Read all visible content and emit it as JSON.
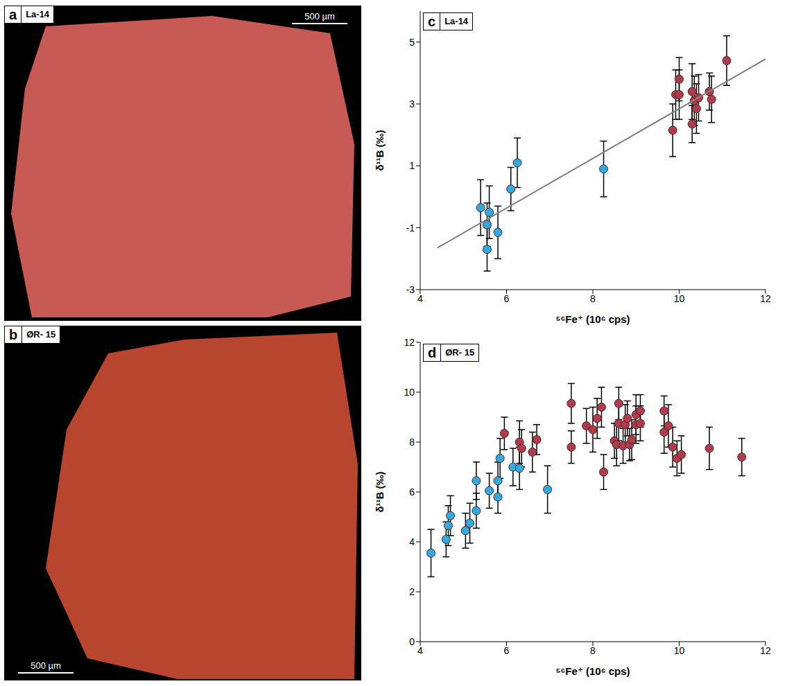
{
  "images": [
    {
      "panel": "a",
      "sample": "La-14",
      "scale_bar": "500 µm"
    },
    {
      "panel": "b",
      "sample": "ØR- 15",
      "scale_bar": "500 µm"
    }
  ],
  "chart_data": [
    {
      "type": "scatter",
      "panel": "c",
      "title": "La-14",
      "x_label": "⁵⁶Fe⁺ (10⁶ cps)",
      "y_label": "δ¹¹B (‰)",
      "xlim": [
        4,
        12
      ],
      "xticks": [
        4,
        6,
        8,
        10,
        12
      ],
      "ylim": [
        -3,
        6
      ],
      "yticks": [
        -3,
        -1,
        1,
        3,
        5
      ],
      "series": [
        {
          "type": "scatter",
          "marker": "circle",
          "color": "#35a9df",
          "x": [
            5.4,
            5.55,
            5.55,
            5.6,
            5.8,
            6.1,
            6.25,
            8.25
          ],
          "y": [
            -0.35,
            -1.7,
            -0.9,
            -0.5,
            -1.15,
            0.25,
            1.1,
            0.9
          ],
          "y_error": [
            0.9,
            0.7,
            0.7,
            0.85,
            0.85,
            0.7,
            0.8,
            0.9
          ]
        },
        {
          "type": "scatter",
          "marker": "circle",
          "color": "#b23a4a",
          "x": [
            9.85,
            9.92,
            10.0,
            10.0,
            10.3,
            10.3,
            10.35,
            10.4,
            10.45,
            10.7,
            10.75,
            11.1
          ],
          "y": [
            2.15,
            3.3,
            3.8,
            3.3,
            3.4,
            2.35,
            3.1,
            2.85,
            3.2,
            3.4,
            3.15,
            4.4
          ],
          "y_error": [
            0.85,
            0.8,
            0.7,
            0.8,
            0.9,
            0.6,
            0.8,
            0.8,
            0.75,
            0.6,
            0.75,
            0.8
          ]
        },
        {
          "type": "line",
          "color": "#808080",
          "x": [
            4.4,
            12
          ],
          "y": [
            -1.65,
            4.45
          ]
        }
      ]
    },
    {
      "type": "scatter",
      "panel": "d",
      "title": "ØR- 15",
      "x_label": "⁵⁶Fe⁺ (10⁶ cps)",
      "y_label": "δ¹¹B (‰)",
      "xlim": [
        4,
        12
      ],
      "xticks": [
        4,
        6,
        8,
        10,
        12
      ],
      "ylim": [
        0,
        12
      ],
      "yticks": [
        0,
        2,
        4,
        6,
        8,
        10,
        12
      ],
      "series": [
        {
          "type": "scatter",
          "marker": "circle",
          "color": "#35a9df",
          "x": [
            4.25,
            4.6,
            4.65,
            4.7,
            5.05,
            5.15,
            5.3,
            5.3,
            5.6,
            5.8,
            5.8,
            5.85,
            6.15,
            6.3,
            6.95
          ],
          "y": [
            3.55,
            4.1,
            4.65,
            5.05,
            4.45,
            4.75,
            5.25,
            6.45,
            6.05,
            5.8,
            6.45,
            7.35,
            7.0,
            6.95,
            6.1
          ],
          "y_error": [
            0.95,
            0.7,
            0.8,
            0.8,
            0.7,
            0.8,
            0.7,
            0.75,
            0.7,
            0.65,
            0.75,
            0.8,
            0.75,
            0.85,
            0.95
          ]
        },
        {
          "type": "scatter",
          "marker": "circle",
          "color": "#b23a4a",
          "x": [
            5.95,
            6.3,
            6.35,
            6.6,
            6.7,
            7.5,
            7.5,
            7.85,
            8.0,
            8.1,
            8.2,
            8.25,
            8.5,
            8.55,
            8.6,
            8.6,
            8.7,
            8.75,
            8.8,
            8.85,
            8.9,
            9.0,
            9.0,
            9.1,
            9.1,
            9.65,
            9.65,
            9.75,
            9.85,
            9.95,
            10.05,
            10.7,
            11.45
          ],
          "y": [
            8.35,
            8.0,
            7.75,
            7.6,
            8.1,
            9.55,
            7.8,
            8.65,
            8.5,
            8.95,
            9.4,
            6.8,
            8.05,
            7.9,
            9.55,
            8.75,
            7.85,
            8.7,
            8.95,
            7.9,
            8.1,
            9.1,
            8.7,
            9.25,
            8.75,
            9.25,
            8.4,
            8.65,
            7.8,
            7.35,
            7.5,
            7.75,
            7.4
          ],
          "y_error": [
            0.65,
            0.85,
            0.75,
            0.8,
            0.6,
            0.8,
            0.65,
            0.7,
            0.9,
            0.8,
            0.8,
            0.7,
            0.7,
            0.85,
            0.65,
            0.7,
            0.7,
            0.8,
            0.7,
            0.65,
            0.8,
            0.8,
            0.75,
            0.65,
            0.7,
            0.6,
            0.85,
            0.85,
            0.8,
            0.7,
            0.75,
            0.85,
            0.75
          ]
        }
      ]
    }
  ]
}
